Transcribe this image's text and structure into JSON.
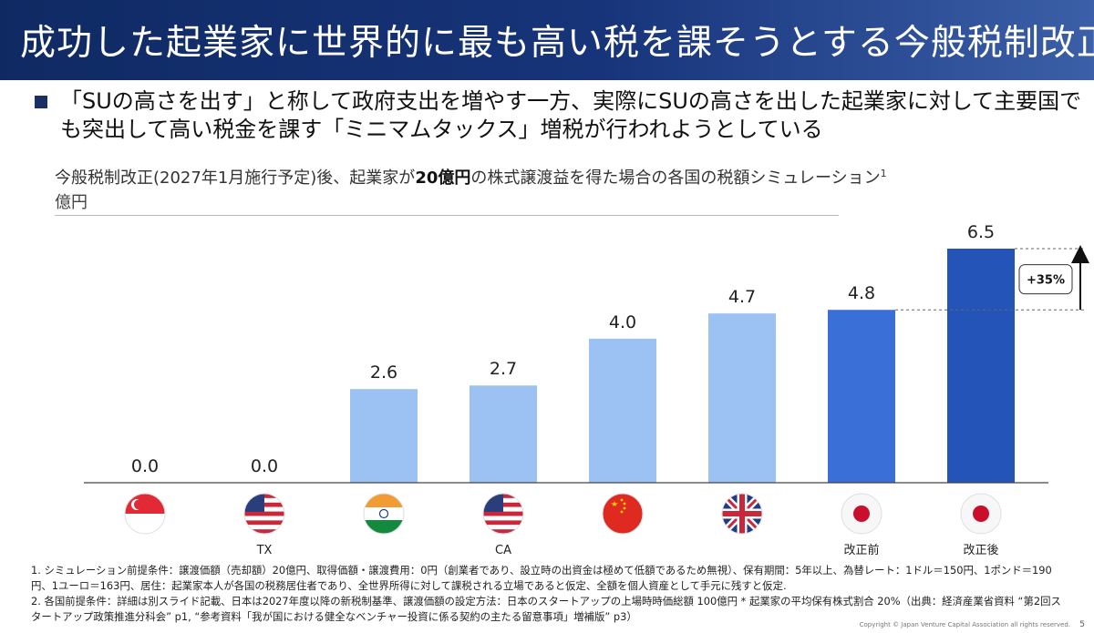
{
  "title": "成功した起業家に世界的に最も高い税を課そうとする今般税制改正",
  "bullet": "「SUの高さを出す」と称して政府支出を増やす一方、実際にSUの高さを出した起業家に対して主要国でも突出して高い税金を課す「ミニマムタックス」増税が行われようとしている",
  "subtitle": {
    "before": "今般税制改正(2027年1月施行予定)後、起業家が",
    "bold": "20億円",
    "after": "の株式譲渡益を得た場合の各国の税額シミュレーション",
    "sup": "1"
  },
  "unit": "億円",
  "chart_data": {
    "type": "bar",
    "categories": [
      "",
      "TX",
      "",
      "CA",
      "",
      "",
      "改正前",
      "改正後"
    ],
    "flags": [
      "singapore",
      "usa",
      "india",
      "usa",
      "china",
      "uk",
      "japan",
      "japan"
    ],
    "values": [
      0.0,
      0.0,
      2.6,
      2.7,
      4.0,
      4.7,
      4.8,
      6.5
    ],
    "value_labels": [
      "0.0",
      "0.0",
      "2.6",
      "2.7",
      "4.0",
      "4.7",
      "4.8",
      "6.5"
    ],
    "colors": [
      "#9cc2f4",
      "#9cc2f4",
      "#9cc2f4",
      "#9cc2f4",
      "#9cc2f4",
      "#9cc2f4",
      "#3a6fd8",
      "#2554b8"
    ],
    "ylim": [
      0,
      6.5
    ],
    "annotation": "+35%",
    "grid": false
  },
  "footnotes": [
    "1. シミュレーション前提条件：譲渡価額（売却額）20億円、取得価額・譲渡費用：0円（創業者であり、設立時の出資金は極めて低額であるため無視）、保有期間：5年以上、為替レート：1ドル＝150円、1ポンド＝190円、1ユーロ＝163円、居住：起業家本人が各国の税務居住者であり、全世界所得に対して課税される立場であると仮定、全額を個人資産として手元に残すと仮定.",
    "2. 各国前提条件：詳細は別スライド記載、日本は2027年度以降の新税制基準、譲渡価額の設定方法：日本のスタートアップの上場時時価総額 100億円 * 起業家の平均保有株式割合 20%（出典：経済産業省資料 “第2回スタートアップ政策推進分科会” p1, “参考資料「我が国における健全なベンチャー投資に係る契約の主たる留意事項」増補版” p3）"
  ],
  "copyright": "Copyright © Japan Venture Capital Association all rights reserved.",
  "page_number": "5"
}
